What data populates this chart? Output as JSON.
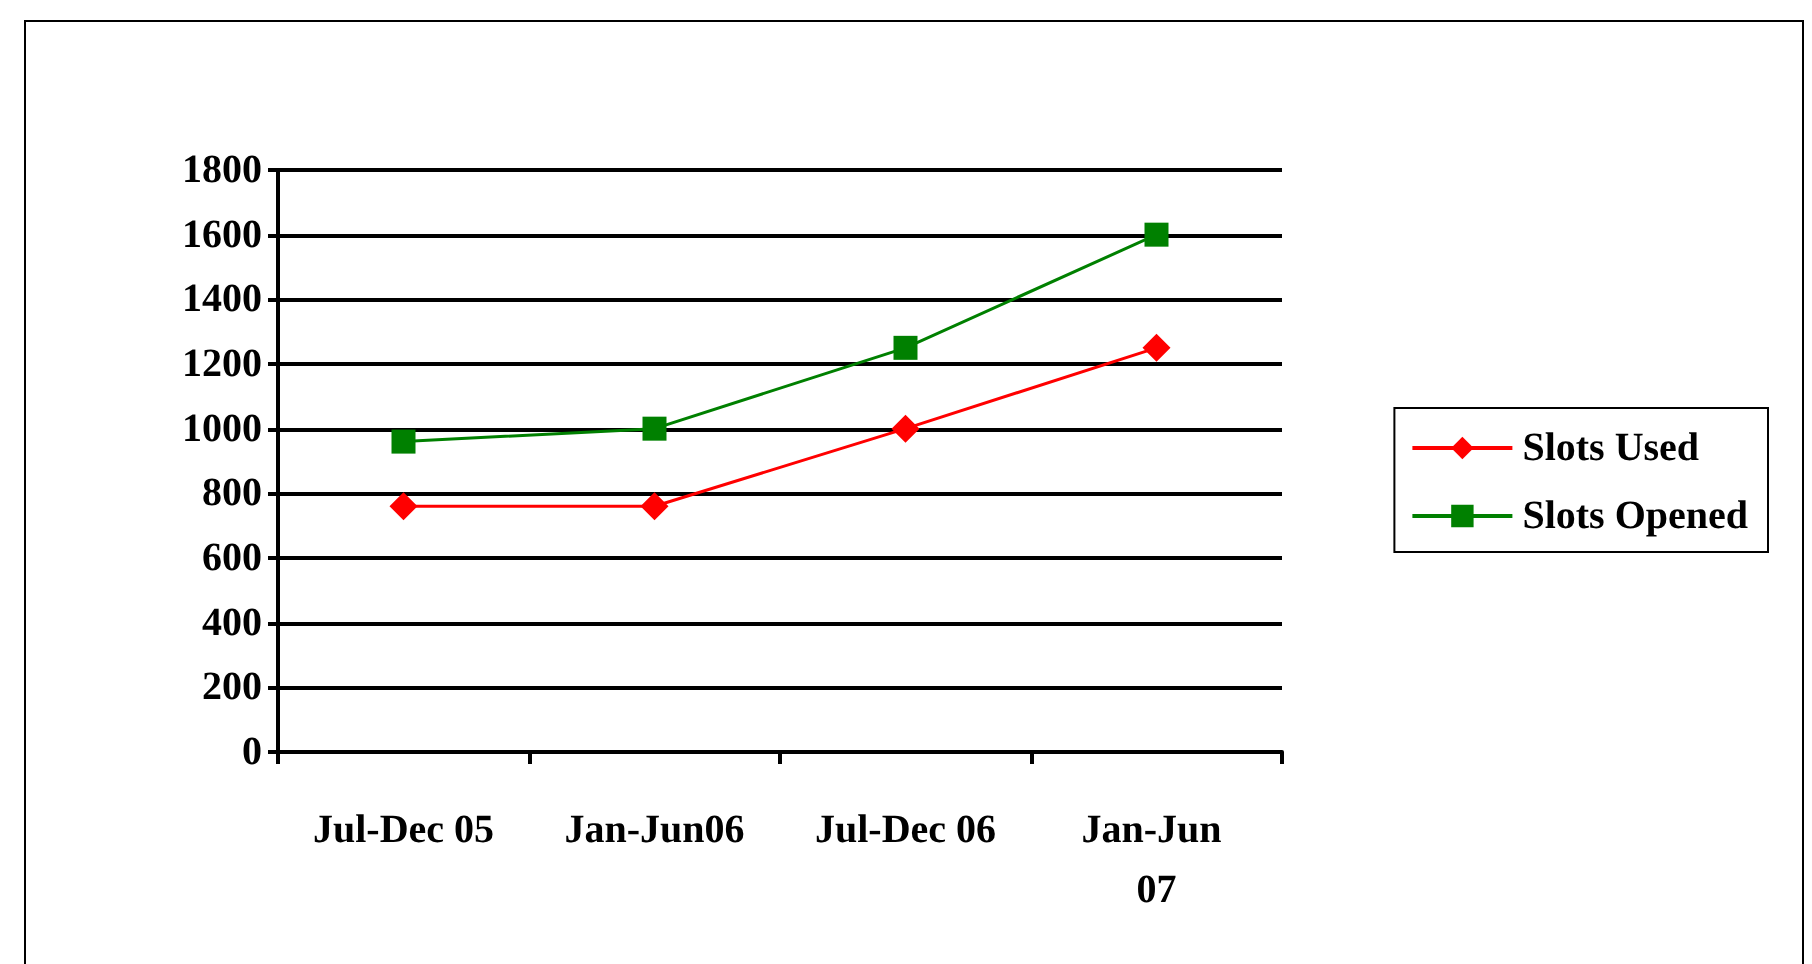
{
  "chart_data": {
    "type": "line",
    "categories": [
      "Jul-Dec 05",
      "Jan-Jun06",
      "Jul-Dec 06",
      "Jan-Jun 07"
    ],
    "series": [
      {
        "name": "Slots Used",
        "color": "#ff0000",
        "marker": "diamond",
        "values": [
          760,
          760,
          1000,
          1250
        ]
      },
      {
        "name": "Slots Opened",
        "color": "#008000",
        "marker": "square",
        "values": [
          960,
          1000,
          1250,
          1600
        ]
      }
    ],
    "ylim": [
      0,
      1800
    ],
    "yticks": [
      0,
      200,
      400,
      600,
      800,
      1000,
      1200,
      1400,
      1600,
      1800
    ],
    "grid": "y",
    "legend": "right",
    "line_style": "solid"
  }
}
